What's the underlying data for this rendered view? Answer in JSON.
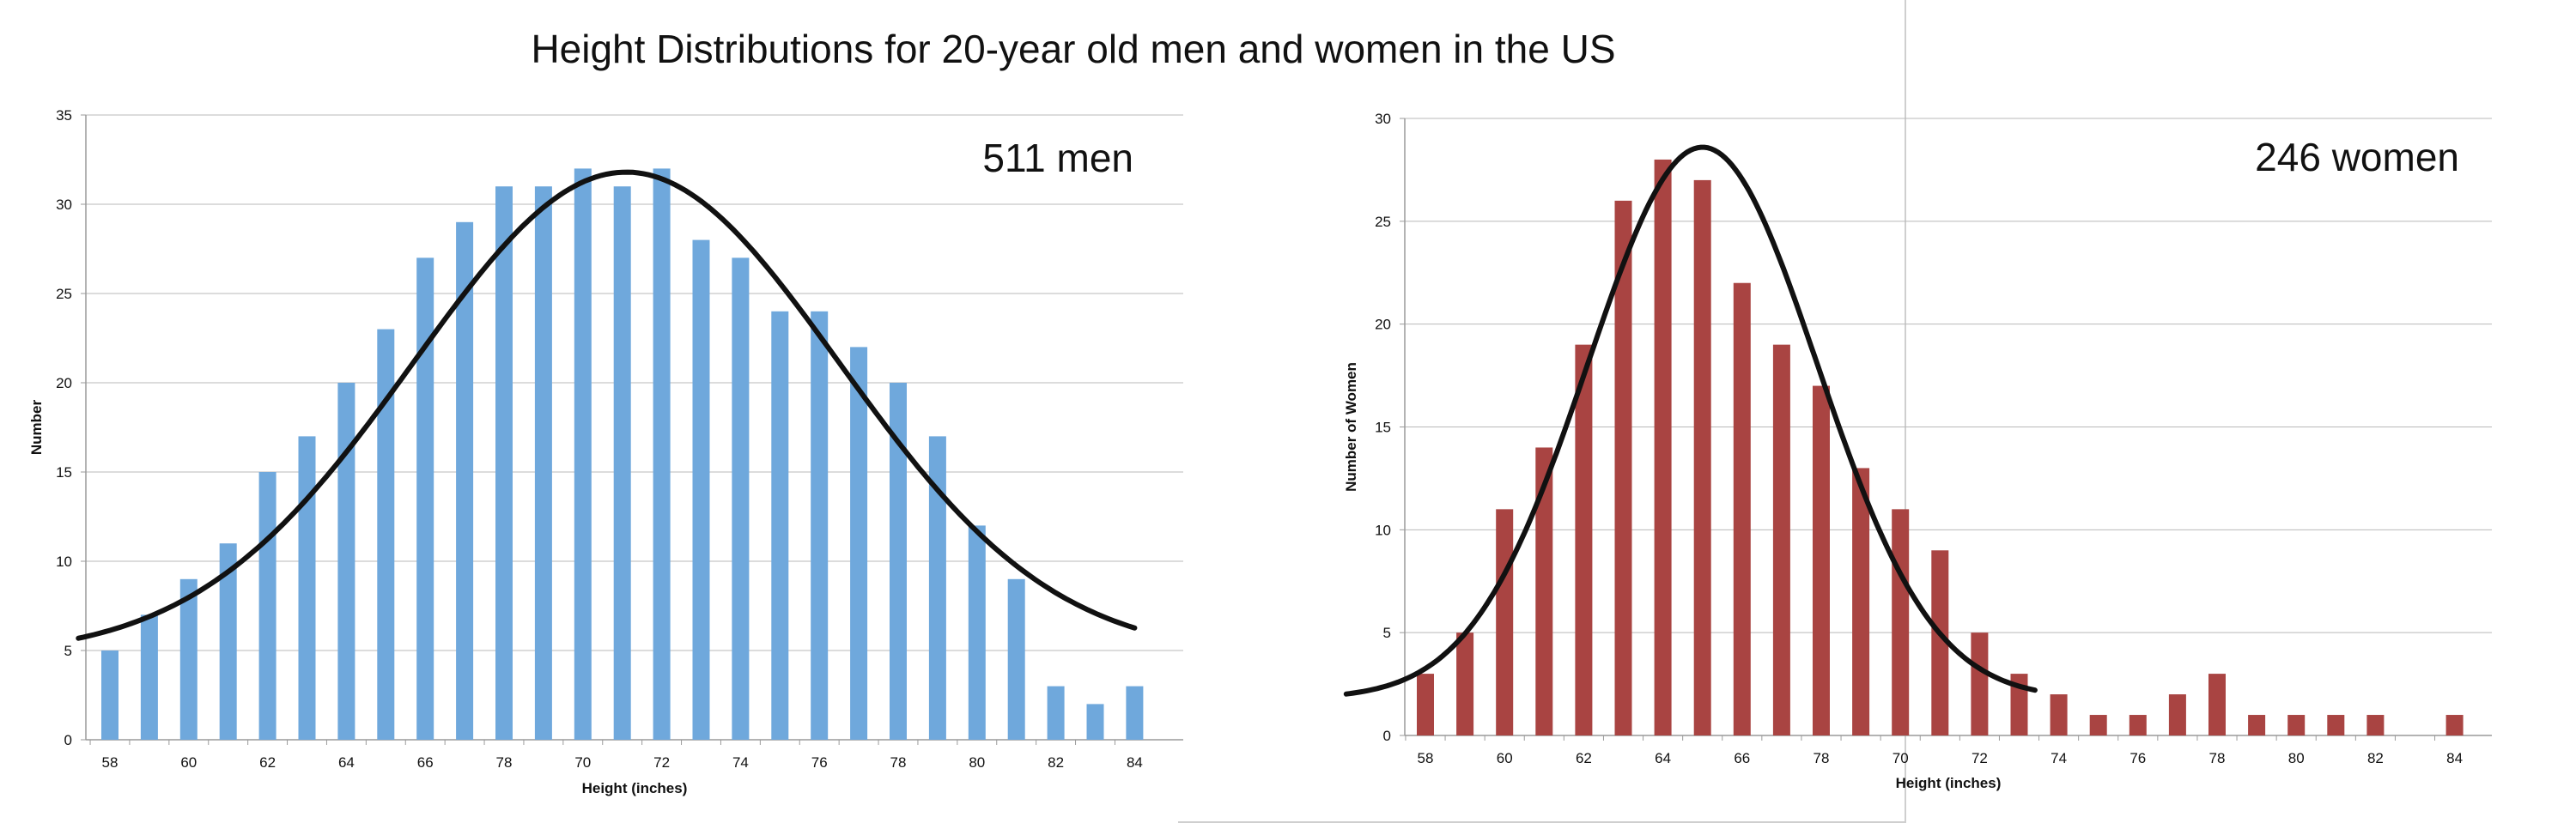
{
  "page_title": "Height Distributions for 20-year old men and women in the US",
  "chart_data": [
    {
      "type": "bar",
      "subject": "men",
      "annotation": "511 men",
      "color": "#6fa8dc",
      "title": "",
      "xlabel": "Height (inches)",
      "ylabel": "Number",
      "ylim": [
        0,
        35
      ],
      "yticks": [
        0,
        5,
        10,
        15,
        20,
        25,
        30,
        35
      ],
      "categories": [
        "58",
        "59",
        "60",
        "61",
        "62",
        "63",
        "64",
        "65",
        "66",
        "67",
        "78",
        "69",
        "70",
        "71",
        "72",
        "73",
        "74",
        "75",
        "76",
        "77",
        "78",
        "79",
        "80",
        "81",
        "82",
        "83",
        "84"
      ],
      "tick_labels": [
        "58",
        "",
        "60",
        "",
        "62",
        "",
        "64",
        "",
        "66",
        "",
        "78",
        "",
        "70",
        "",
        "72",
        "",
        "74",
        "",
        "76",
        "",
        "78",
        "",
        "80",
        "",
        "82",
        "",
        "84"
      ],
      "values": [
        5,
        7,
        9,
        11,
        15,
        17,
        20,
        23,
        27,
        29,
        31,
        31,
        32,
        31,
        32,
        28,
        27,
        24,
        24,
        22,
        20,
        17,
        12,
        9,
        3,
        2,
        3
      ],
      "curve": {
        "type": "normal-fit",
        "x_start": 57.2,
        "x_end": 84.0,
        "peak_x": 71.1,
        "peak_value": 31.8,
        "baseline": 4.7,
        "sd": 5.4
      }
    },
    {
      "type": "bar",
      "subject": "women",
      "annotation": "246 women",
      "color": "#a94442",
      "title": "",
      "xlabel": "Height (inches)",
      "ylabel": "Number of Women",
      "ylim": [
        0,
        30
      ],
      "yticks": [
        0,
        5,
        10,
        15,
        20,
        25,
        30
      ],
      "categories": [
        "58",
        "59",
        "60",
        "61",
        "62",
        "63",
        "64",
        "65",
        "66",
        "67",
        "78",
        "69",
        "70",
        "71",
        "72",
        "73",
        "74",
        "75",
        "76",
        "77",
        "78",
        "79",
        "80",
        "81",
        "82",
        "83",
        "84"
      ],
      "tick_labels": [
        "58",
        "",
        "60",
        "",
        "62",
        "",
        "64",
        "",
        "66",
        "",
        "78",
        "",
        "70",
        "",
        "72",
        "",
        "74",
        "",
        "76",
        "",
        "78",
        "",
        "80",
        "",
        "82",
        "",
        "84"
      ],
      "values": [
        3,
        5,
        11,
        14,
        19,
        26,
        28,
        27,
        22,
        19,
        17,
        13,
        11,
        9,
        5,
        3,
        2,
        1,
        1,
        2,
        3,
        1,
        1,
        1,
        1,
        0,
        1
      ],
      "curve": {
        "type": "normal-fit",
        "x_start": 56.0,
        "x_end": 73.4,
        "peak_x": 65.0,
        "peak_value": 28.6,
        "baseline": 1.8,
        "sd": 2.9
      }
    }
  ]
}
